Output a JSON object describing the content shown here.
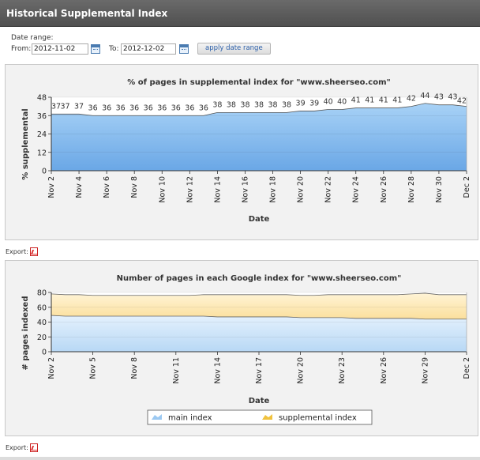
{
  "header": {
    "title": "Historical Supplemental Index"
  },
  "filters": {
    "range_label": "Date range:",
    "from_label": "From:",
    "from_value": "2012-11-02",
    "to_label": "To:",
    "to_value": "2012-12-02",
    "apply_label": "apply date range",
    "calendar_icon": "calendar-icon"
  },
  "export": {
    "label": "Export:",
    "icon": "pdf-icon"
  },
  "colors": {
    "header_bg": "#555555",
    "supplemental_fill": "#8ec1ef",
    "main_index_fill": "#cfe5fa",
    "supplemental_index_fill": "#fde9b8",
    "line": "#555555"
  },
  "chart_data": [
    {
      "type": "area",
      "title": "% of pages in supplemental index for \"www.sheerseo.com\"",
      "xlabel": "Date",
      "ylabel": "% supplemental",
      "ylim": [
        0,
        48
      ],
      "yticks": [
        0,
        12,
        24,
        36,
        48
      ],
      "grid": true,
      "x": [
        "Nov 2",
        "Nov 3",
        "Nov 4",
        "Nov 5",
        "Nov 6",
        "Nov 7",
        "Nov 8",
        "Nov 9",
        "Nov 10",
        "Nov 11",
        "Nov 12",
        "Nov 13",
        "Nov 14",
        "Nov 15",
        "Nov 16",
        "Nov 17",
        "Nov 18",
        "Nov 19",
        "Nov 20",
        "Nov 21",
        "Nov 22",
        "Nov 23",
        "Nov 24",
        "Nov 25",
        "Nov 26",
        "Nov 27",
        "Nov 28",
        "Nov 29",
        "Nov 30",
        "Dec 1",
        "Dec 2"
      ],
      "xtick_labels": [
        "Nov 2",
        "Nov 4",
        "Nov 6",
        "Nov 8",
        "Nov 10",
        "Nov 12",
        "Nov 14",
        "Nov 16",
        "Nov 18",
        "Nov 20",
        "Nov 22",
        "Nov 24",
        "Nov 26",
        "Nov 28",
        "Nov 30",
        "Dec 2"
      ],
      "series": [
        {
          "values": [
            37,
            37,
            37,
            36,
            36,
            36,
            36,
            36,
            36,
            36,
            36,
            36,
            38,
            38,
            38,
            38,
            38,
            38,
            39,
            39,
            40,
            40,
            41,
            41,
            41,
            41,
            42,
            44,
            43,
            43,
            42
          ]
        }
      ]
    },
    {
      "type": "area",
      "title": "Number of pages in each Google index for \"www.sheerseo.com\"",
      "xlabel": "Date",
      "ylabel": "# pages indexed",
      "ylim": [
        0,
        80
      ],
      "yticks": [
        0,
        20,
        40,
        60,
        80
      ],
      "grid": true,
      "stacked": true,
      "x": [
        "Nov 2",
        "Nov 3",
        "Nov 4",
        "Nov 5",
        "Nov 6",
        "Nov 7",
        "Nov 8",
        "Nov 9",
        "Nov 10",
        "Nov 11",
        "Nov 12",
        "Nov 13",
        "Nov 14",
        "Nov 15",
        "Nov 16",
        "Nov 17",
        "Nov 18",
        "Nov 19",
        "Nov 20",
        "Nov 21",
        "Nov 22",
        "Nov 23",
        "Nov 24",
        "Nov 25",
        "Nov 26",
        "Nov 27",
        "Nov 28",
        "Nov 29",
        "Nov 30",
        "Dec 1",
        "Dec 2"
      ],
      "xtick_labels": [
        "Nov 2",
        "Nov 5",
        "Nov 8",
        "Nov 11",
        "Nov 14",
        "Nov 17",
        "Nov 20",
        "Nov 23",
        "Nov 26",
        "Nov 29",
        "Dec 2"
      ],
      "legend": "bottom-center",
      "series": [
        {
          "name": "main index",
          "values": [
            49,
            48,
            48,
            48,
            48,
            48,
            48,
            48,
            48,
            48,
            48,
            48,
            47,
            47,
            47,
            47,
            47,
            47,
            46,
            46,
            46,
            46,
            45,
            45,
            45,
            45,
            45,
            44,
            44,
            44,
            44
          ]
        },
        {
          "name": "supplemental index",
          "values": [
            29,
            29,
            29,
            28,
            28,
            28,
            28,
            28,
            28,
            28,
            28,
            29,
            30,
            30,
            30,
            30,
            30,
            30,
            30,
            30,
            31,
            31,
            32,
            32,
            32,
            32,
            33,
            35,
            33,
            33,
            33
          ]
        }
      ]
    }
  ]
}
